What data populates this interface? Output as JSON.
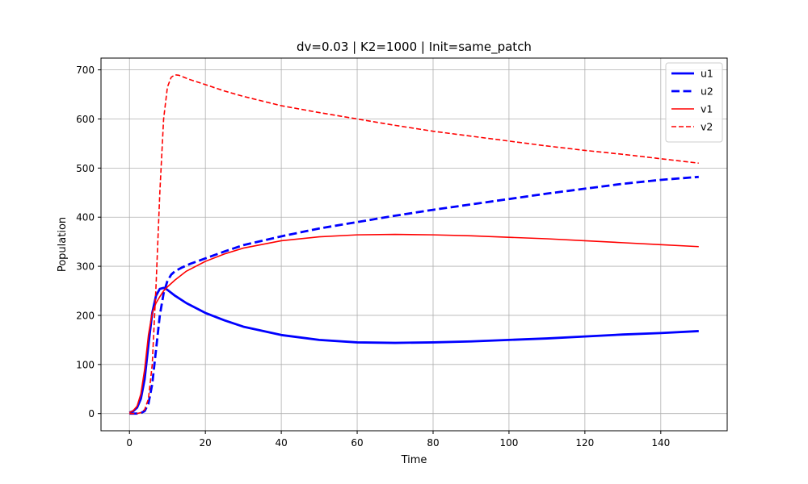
{
  "chart_data": {
    "type": "line",
    "title": "dv=0.03 | K2=1000 | Init=same_patch",
    "xlabel": "Time",
    "ylabel": "Population",
    "xlim": [
      -7.5,
      157.5
    ],
    "ylim": [
      -35,
      724
    ],
    "xticks": [
      0,
      20,
      40,
      60,
      80,
      100,
      120,
      140
    ],
    "yticks": [
      0,
      100,
      200,
      300,
      400,
      500,
      600,
      700
    ],
    "grid": true,
    "legend": "top-right",
    "series": [
      {
        "name": "u1",
        "color": "#0000ff",
        "dash": "solid",
        "width": "thick",
        "x": [
          0,
          1,
          2,
          3,
          4,
          5,
          6,
          7,
          8,
          9,
          10,
          12,
          15,
          20,
          25,
          30,
          40,
          50,
          60,
          70,
          80,
          90,
          100,
          110,
          120,
          130,
          140,
          150
        ],
        "y": [
          2,
          5,
          12,
          30,
          70,
          140,
          205,
          240,
          254,
          256,
          252,
          240,
          225,
          205,
          190,
          177,
          160,
          150,
          145,
          144,
          145,
          147,
          150,
          153,
          157,
          161,
          164,
          168
        ]
      },
      {
        "name": "u2",
        "color": "#0000ff",
        "dash": "dashed",
        "width": "thick",
        "x": [
          0,
          2,
          3,
          4,
          5,
          6,
          7,
          8,
          9,
          10,
          11,
          12,
          14,
          16,
          20,
          25,
          30,
          40,
          50,
          60,
          70,
          80,
          90,
          100,
          110,
          120,
          130,
          140,
          150
        ],
        "y": [
          0,
          0,
          1,
          5,
          20,
          60,
          130,
          200,
          245,
          270,
          283,
          290,
          298,
          305,
          316,
          330,
          343,
          361,
          377,
          390,
          403,
          415,
          426,
          437,
          448,
          458,
          468,
          476,
          482
        ]
      },
      {
        "name": "v1",
        "color": "#ff0000",
        "dash": "solid",
        "width": "normal",
        "x": [
          0,
          1,
          2,
          3,
          4,
          5,
          6,
          7,
          8,
          9,
          10,
          12,
          15,
          20,
          25,
          30,
          40,
          50,
          60,
          70,
          80,
          90,
          100,
          110,
          120,
          130,
          140,
          150
        ],
        "y": [
          2,
          6,
          15,
          40,
          90,
          160,
          205,
          225,
          238,
          250,
          258,
          272,
          290,
          310,
          325,
          337,
          352,
          360,
          364,
          365,
          364,
          362,
          359,
          356,
          352,
          348,
          344,
          340
        ]
      },
      {
        "name": "v2",
        "color": "#ff0000",
        "dash": "dashed",
        "width": "normal",
        "x": [
          0,
          2,
          3,
          4,
          5,
          6,
          7,
          8,
          9,
          10,
          11,
          12,
          13,
          14,
          16,
          20,
          25,
          30,
          40,
          50,
          60,
          70,
          80,
          90,
          100,
          110,
          120,
          130,
          140,
          150
        ],
        "y": [
          0,
          0,
          2,
          8,
          30,
          100,
          260,
          450,
          600,
          665,
          685,
          690,
          689,
          686,
          680,
          670,
          657,
          646,
          627,
          613,
          600,
          587,
          575,
          565,
          555,
          545,
          536,
          528,
          519,
          510
        ]
      }
    ]
  }
}
